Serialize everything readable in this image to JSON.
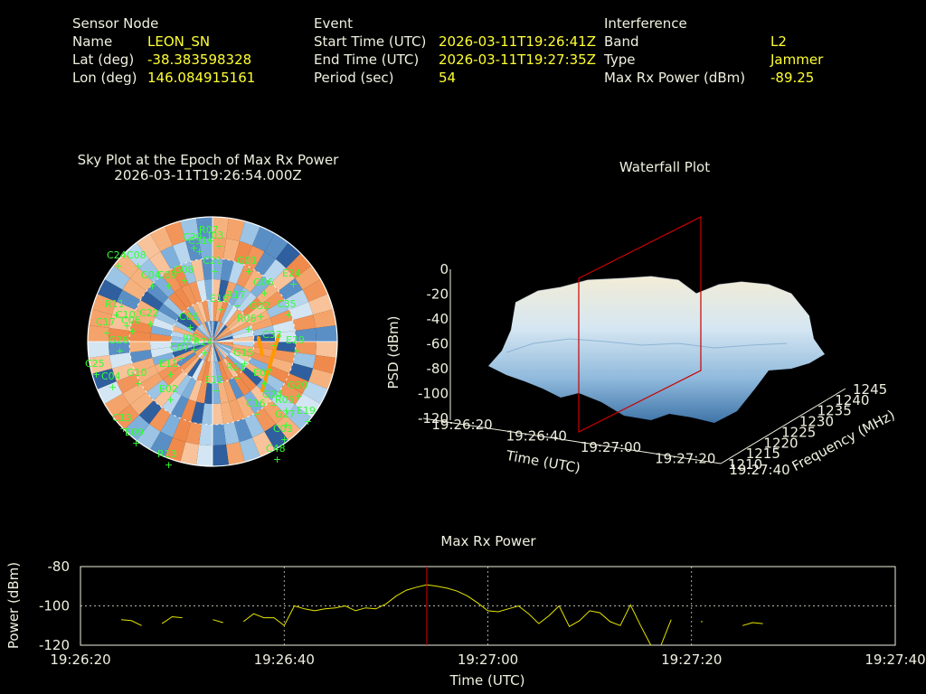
{
  "header": {
    "sensor": {
      "heading": "Sensor Node",
      "rows": [
        {
          "label": "Name",
          "value": "LEON_SN"
        },
        {
          "label": "Lat (deg)",
          "value": "-38.383598328"
        },
        {
          "label": "Lon (deg)",
          "value": "146.084915161"
        }
      ]
    },
    "event": {
      "heading": "Event",
      "rows": [
        {
          "label": "Start Time (UTC)",
          "value": "2026-03-11T19:26:41Z"
        },
        {
          "label": "End Time (UTC)",
          "value": "2026-03-11T19:27:35Z"
        },
        {
          "label": "Period (sec)",
          "value": "54"
        }
      ]
    },
    "interference": {
      "heading": "Interference",
      "rows": [
        {
          "label": "Band",
          "value": "L2"
        },
        {
          "label": "Type",
          "value": "Jammer"
        },
        {
          "label": "Max Rx Power (dBm)",
          "value": "-89.25"
        }
      ]
    }
  },
  "colors": {
    "label": "#f0f0e0",
    "value": "#ffff33",
    "satellite": "#33ff33",
    "line": "#e6e600",
    "marker": "#cc0000",
    "sky_warm": "#f4a46a",
    "sky_cool": "#9cc4e4"
  },
  "chart_data": [
    {
      "type": "scatter",
      "title": "Sky Plot at the Epoch of Max Rx Power",
      "subtitle": "2026-03-11T19:26:54.000Z",
      "satellites": [
        "R07",
        "C29",
        "J03",
        "C31",
        "C24",
        "C08",
        "C04",
        "C09",
        "C21",
        "G01",
        "G08",
        "G06",
        "E24",
        "R11",
        "C10",
        "C06",
        "C17",
        "C22",
        "E16",
        "R17",
        "C35",
        "G32",
        "C06",
        "G26",
        "R06",
        "C33",
        "J05",
        "G15",
        "E29",
        "C07",
        "R24",
        "C25",
        "G10",
        "C04",
        "E11",
        "R21",
        "E07",
        "E12",
        "G24",
        "E02",
        "G20",
        "C16",
        "R05",
        "E19",
        "C13",
        "G27",
        "E09",
        "C03",
        "C48",
        "R13"
      ]
    },
    {
      "type": "heatmap",
      "title": "Waterfall Plot",
      "xlabel": "Time (UTC)",
      "ylabel": "Frequency (MHz)",
      "zlabel": "PSD (dBm)",
      "x_ticks": [
        "19:26:20",
        "19:26:40",
        "19:27:00",
        "19:27:20",
        "19:27:40"
      ],
      "y_ticks": [
        "1210",
        "1215",
        "1220",
        "1225",
        "1230",
        "1235",
        "1240",
        "1245"
      ],
      "z_ticks": [
        "0",
        "-20",
        "-40",
        "-60",
        "-80",
        "-100",
        "-120"
      ],
      "zlim": [
        -120,
        0
      ],
      "marker_time": "19:26:54"
    },
    {
      "type": "line",
      "title": "Max Rx Power",
      "xlabel": "Time (UTC)",
      "ylabel": "Power (dBm)",
      "ylim": [
        -120,
        -80
      ],
      "x_ticks": [
        "19:26:20",
        "19:26:40",
        "19:27:00",
        "19:27:20",
        "19:27:40"
      ],
      "y_ticks": [
        "-80",
        "-100",
        "-120"
      ],
      "grid": true,
      "marker_time_s": 34,
      "segments": [
        [
          [
            4,
            -107
          ],
          [
            5,
            -107.5
          ],
          [
            6,
            -110
          ]
        ],
        [
          [
            8,
            -109
          ],
          [
            9,
            -105.5
          ],
          [
            10,
            -106
          ]
        ],
        [
          [
            13,
            -107
          ],
          [
            14,
            -108.5
          ]
        ],
        [
          [
            16,
            -108
          ],
          [
            17,
            -104
          ],
          [
            18,
            -106
          ],
          [
            19,
            -106
          ],
          [
            20,
            -110
          ],
          [
            21,
            -100
          ],
          [
            22,
            -101.5
          ],
          [
            23,
            -102.5
          ],
          [
            24,
            -101.5
          ],
          [
            25,
            -101
          ],
          [
            26,
            -100
          ],
          [
            27,
            -102.5
          ],
          [
            28,
            -101
          ],
          [
            29,
            -101.5
          ],
          [
            30,
            -99
          ],
          [
            31,
            -95
          ],
          [
            32,
            -92
          ],
          [
            33,
            -90.5
          ],
          [
            34,
            -89.25
          ],
          [
            35,
            -90
          ],
          [
            36,
            -91
          ],
          [
            37,
            -92.5
          ],
          [
            38,
            -95
          ],
          [
            39,
            -98.5
          ],
          [
            40,
            -102.5
          ],
          [
            41,
            -103
          ],
          [
            42,
            -101.5
          ],
          [
            43,
            -100
          ],
          [
            44,
            -104
          ],
          [
            45,
            -109
          ],
          [
            46,
            -105
          ],
          [
            47,
            -100
          ],
          [
            48,
            -110.5
          ],
          [
            49,
            -107.5
          ],
          [
            50,
            -102.5
          ],
          [
            51,
            -103.5
          ],
          [
            52,
            -108
          ],
          [
            53,
            -110
          ],
          [
            54,
            -99.5
          ],
          [
            55,
            -110
          ],
          [
            56,
            -120
          ]
        ],
        [
          [
            57,
            -120
          ],
          [
            58,
            -107
          ]
        ],
        [
          [
            61,
            -108
          ]
        ],
        [
          [
            65,
            -110
          ],
          [
            66,
            -108.5
          ],
          [
            67,
            -109
          ]
        ]
      ]
    }
  ]
}
